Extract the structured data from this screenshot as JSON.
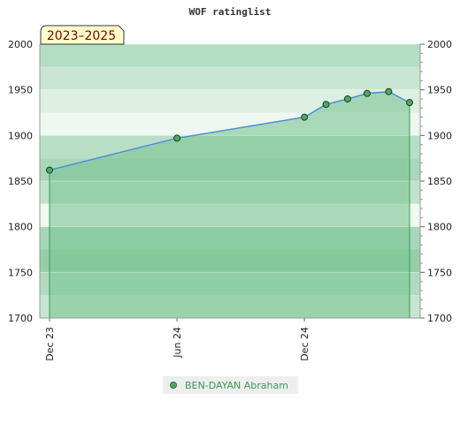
{
  "chart_data": {
    "type": "area",
    "title": "WOF ratinglist",
    "period_label": "2023–2025",
    "ylim": [
      1700,
      2000
    ],
    "yticks": [
      1700,
      1750,
      1800,
      1850,
      1900,
      1950,
      2000
    ],
    "xticks": [
      {
        "label": "Dec 23",
        "x": "2023-12"
      },
      {
        "label": "Jun 24",
        "x": "2024-06"
      },
      {
        "label": "Dec 24",
        "x": "2024-12"
      }
    ],
    "series": [
      {
        "name": "BEN-DAYAN Abraham",
        "points": [
          {
            "x": "2023-12",
            "y": 1862
          },
          {
            "x": "2024-06",
            "y": 1897
          },
          {
            "x": "2024-12",
            "y": 1920
          },
          {
            "x": "2025-01",
            "y": 1934
          },
          {
            "x": "2025-02",
            "y": 1940
          },
          {
            "x": "2025-03",
            "y": 1946
          },
          {
            "x": "2025-04",
            "y": 1948
          },
          {
            "x": "2025-05",
            "y": 1936
          }
        ]
      }
    ],
    "grid": true,
    "legend": "bottom-center",
    "colors": {
      "line": "#4a90d9",
      "fill": "#7cc494",
      "marker": "#4daa5e",
      "legend_text": "#3a9a55",
      "badge_bg": "#ffffcc"
    }
  }
}
